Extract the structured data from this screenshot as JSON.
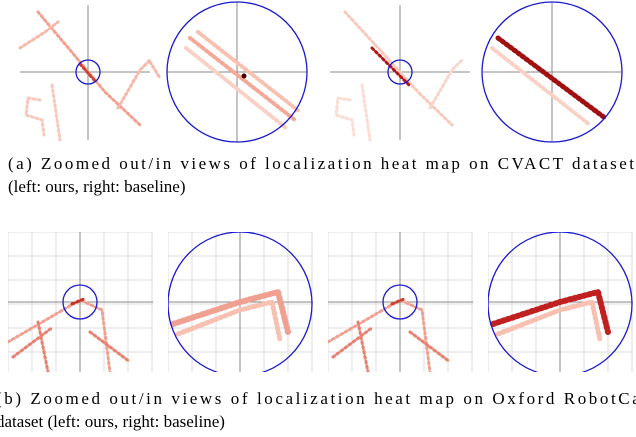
{
  "captions": {
    "a": {
      "line1": "(a) Zoomed out/in views of localization heat map on CVACT dataset",
      "line2": "(left: ours, right: baseline)"
    },
    "b": {
      "line1": "(b) Zoomed out/in views of localization heat map on Oxford RobotCar",
      "line2": "dataset (left: ours, right: baseline)"
    }
  }
}
